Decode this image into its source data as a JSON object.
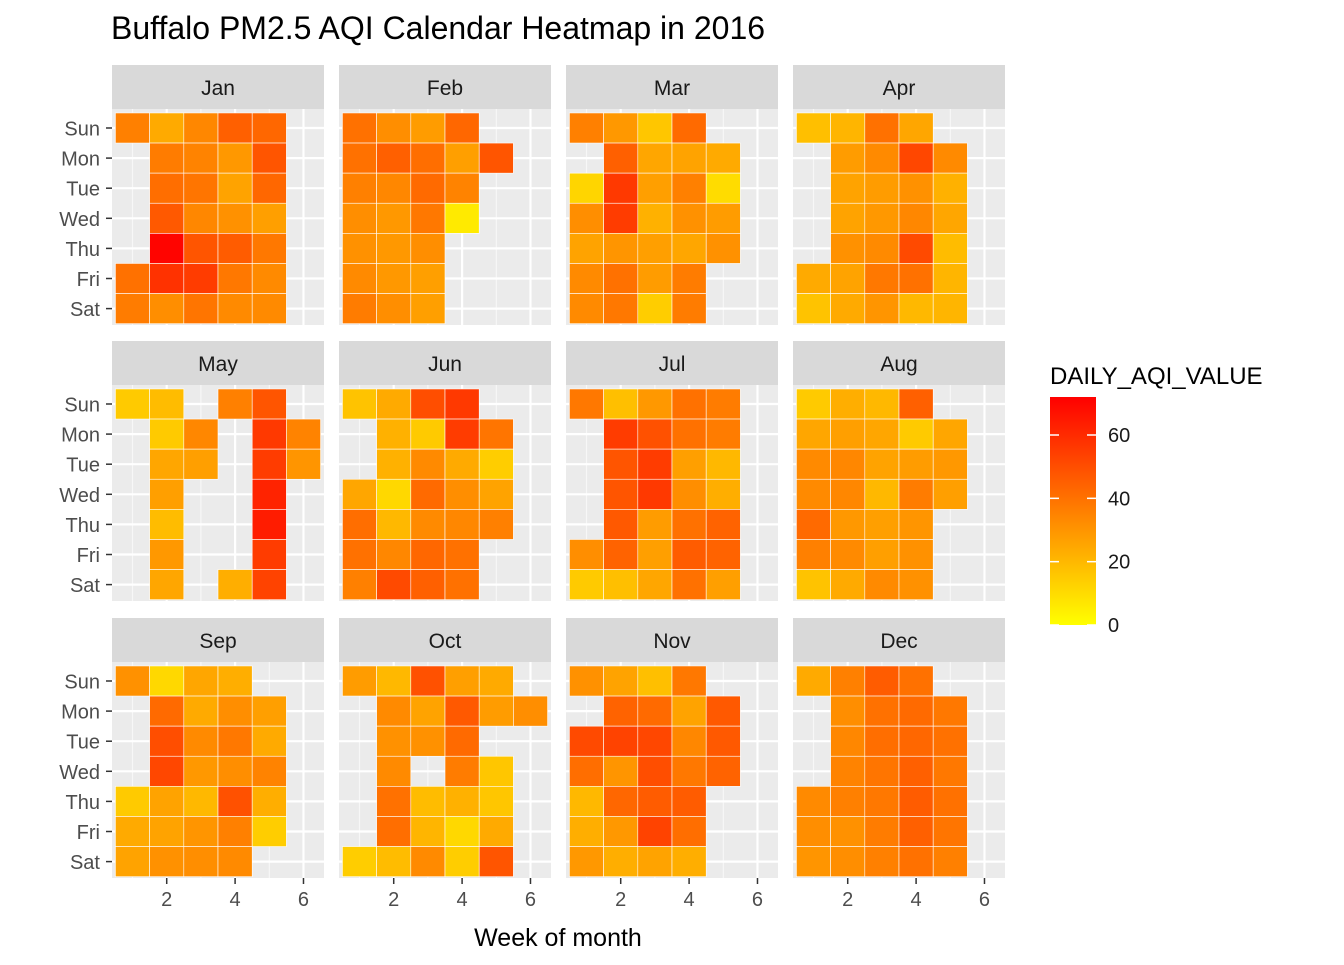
{
  "chart_data": {
    "type": "heatmap",
    "title": "Buffalo PM2.5 AQI Calendar Heatmap in 2016",
    "xlabel": "Week of month",
    "ylabel": "",
    "x_ticks": [
      "2",
      "4",
      "6"
    ],
    "x_tick_values": [
      2,
      4,
      6
    ],
    "xlim": [
      0.4,
      6.6
    ],
    "weekdays": [
      "Sun",
      "Mon",
      "Tue",
      "Wed",
      "Thu",
      "Fri",
      "Sat"
    ],
    "legend": {
      "title": "DAILY_AQI_VALUE",
      "position": "right",
      "range": [
        0,
        72
      ],
      "ticks": [
        "0",
        "20",
        "40",
        "60"
      ],
      "tick_values": [
        0,
        20,
        40,
        60
      ],
      "color_low": "#FFFF00",
      "color_high": "#FF0000"
    },
    "grid": true,
    "months": [
      {
        "name": "Jan",
        "values": [
          [
            36,
            24,
            34,
            45,
            43,
            null
          ],
          [
            null,
            37,
            35,
            29,
            48,
            null
          ],
          [
            null,
            41,
            39,
            26,
            43,
            null
          ],
          [
            null,
            47,
            34,
            31,
            27,
            null
          ],
          [
            null,
            71,
            48,
            46,
            38,
            null
          ],
          [
            40,
            58,
            55,
            38,
            33,
            null
          ],
          [
            37,
            32,
            39,
            33,
            33,
            null
          ]
        ]
      },
      {
        "name": "Feb",
        "values": [
          [
            40,
            32,
            28,
            43,
            null,
            null
          ],
          [
            40,
            45,
            41,
            27,
            48,
            null
          ],
          [
            36,
            34,
            42,
            35,
            null,
            null
          ],
          [
            32,
            29,
            38,
            6,
            null,
            null
          ],
          [
            31,
            29,
            32,
            null,
            null,
            null
          ],
          [
            33,
            29,
            27,
            null,
            null,
            null
          ],
          [
            37,
            32,
            27,
            null,
            null,
            null
          ]
        ]
      },
      {
        "name": "Mar",
        "values": [
          [
            36,
            29,
            16,
            42,
            null,
            null
          ],
          [
            null,
            45,
            25,
            26,
            24,
            null
          ],
          [
            12,
            56,
            27,
            36,
            10,
            null
          ],
          [
            32,
            55,
            22,
            31,
            28,
            null
          ],
          [
            26,
            30,
            27,
            25,
            31,
            null
          ],
          [
            33,
            40,
            28,
            37,
            null,
            null
          ],
          [
            33,
            38,
            14,
            37,
            null,
            null
          ]
        ]
      },
      {
        "name": "Apr",
        "values": [
          [
            18,
            21,
            40,
            25,
            null,
            null
          ],
          [
            null,
            28,
            33,
            52,
            33,
            null
          ],
          [
            null,
            26,
            28,
            31,
            22,
            null
          ],
          [
            null,
            26,
            29,
            34,
            25,
            null
          ],
          [
            null,
            31,
            33,
            51,
            19,
            null
          ],
          [
            24,
            26,
            38,
            40,
            21,
            null
          ],
          [
            17,
            24,
            30,
            20,
            21,
            null
          ]
        ]
      },
      {
        "name": "May",
        "values": [
          [
            15,
            19,
            null,
            36,
            48,
            null
          ],
          [
            null,
            15,
            34,
            null,
            56,
            35
          ],
          [
            null,
            25,
            27,
            null,
            55,
            30
          ],
          [
            null,
            27,
            null,
            null,
            62,
            null
          ],
          [
            null,
            19,
            null,
            null,
            64,
            null
          ],
          [
            null,
            29,
            null,
            null,
            55,
            null
          ],
          [
            null,
            25,
            null,
            23,
            53,
            null
          ]
        ]
      },
      {
        "name": "Jun",
        "values": [
          [
            17,
            24,
            50,
            56,
            null,
            null
          ],
          [
            null,
            22,
            15,
            55,
            39,
            null
          ],
          [
            null,
            22,
            33,
            24,
            14,
            null
          ],
          [
            25,
            11,
            42,
            32,
            26,
            null
          ],
          [
            41,
            20,
            33,
            34,
            36,
            null
          ],
          [
            40,
            34,
            43,
            40,
            null,
            null
          ],
          [
            36,
            51,
            45,
            40,
            null,
            null
          ]
        ]
      },
      {
        "name": "Jul",
        "values": [
          [
            38,
            18,
            29,
            40,
            37,
            null
          ],
          [
            null,
            55,
            49,
            40,
            37,
            null
          ],
          [
            null,
            48,
            55,
            27,
            20,
            null
          ],
          [
            null,
            48,
            56,
            32,
            23,
            null
          ],
          [
            null,
            47,
            28,
            40,
            44,
            null
          ],
          [
            32,
            44,
            27,
            46,
            44,
            null
          ],
          [
            15,
            18,
            25,
            40,
            27,
            null
          ]
        ]
      },
      {
        "name": "Aug",
        "values": [
          [
            15,
            23,
            20,
            45,
            null,
            null
          ],
          [
            25,
            27,
            25,
            15,
            25,
            null
          ],
          [
            33,
            34,
            26,
            28,
            29,
            null
          ],
          [
            33,
            34,
            20,
            37,
            27,
            null
          ],
          [
            42,
            29,
            27,
            30,
            null,
            null
          ],
          [
            36,
            33,
            27,
            31,
            null,
            null
          ],
          [
            17,
            24,
            33,
            31,
            null,
            null
          ]
        ]
      },
      {
        "name": "Sep",
        "values": [
          [
            31,
            11,
            25,
            23,
            null,
            null
          ],
          [
            null,
            42,
            24,
            32,
            27,
            null
          ],
          [
            null,
            50,
            33,
            38,
            24,
            null
          ],
          [
            null,
            52,
            29,
            32,
            35,
            null
          ],
          [
            15,
            26,
            20,
            49,
            23,
            null
          ],
          [
            24,
            26,
            30,
            36,
            14,
            null
          ],
          [
            26,
            31,
            32,
            33,
            null,
            null
          ]
        ]
      },
      {
        "name": "Oct",
        "values": [
          [
            28,
            20,
            49,
            27,
            24,
            null
          ],
          [
            null,
            33,
            26,
            47,
            28,
            32
          ],
          [
            null,
            31,
            31,
            42,
            null,
            null
          ],
          [
            null,
            33,
            null,
            37,
            16,
            null
          ],
          [
            null,
            40,
            19,
            22,
            16,
            null
          ],
          [
            null,
            41,
            21,
            11,
            24,
            null
          ],
          [
            14,
            19,
            33,
            14,
            48,
            null
          ]
        ]
      },
      {
        "name": "Nov",
        "values": [
          [
            31,
            26,
            18,
            38,
            null,
            null
          ],
          [
            null,
            44,
            42,
            26,
            47,
            null
          ],
          [
            51,
            53,
            52,
            34,
            47,
            null
          ],
          [
            41,
            30,
            50,
            38,
            44,
            null
          ],
          [
            20,
            43,
            46,
            46,
            null,
            null
          ],
          [
            23,
            29,
            53,
            41,
            null,
            null
          ],
          [
            29,
            23,
            26,
            23,
            null,
            null
          ]
        ]
      },
      {
        "name": "Dec",
        "values": [
          [
            24,
            36,
            46,
            40,
            null,
            null
          ],
          [
            null,
            32,
            40,
            42,
            38,
            null
          ],
          [
            null,
            34,
            41,
            43,
            40,
            null
          ],
          [
            null,
            35,
            39,
            45,
            38,
            null
          ],
          [
            33,
            36,
            38,
            46,
            40,
            null
          ],
          [
            32,
            31,
            37,
            45,
            39,
            null
          ],
          [
            30,
            32,
            36,
            40,
            36,
            null
          ]
        ]
      }
    ]
  }
}
